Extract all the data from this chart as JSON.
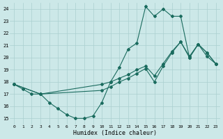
{
  "xlabel": "Humidex (Indice chaleur)",
  "background_color": "#cce8e8",
  "grid_color": "#aacfcf",
  "line_color": "#1a6b5e",
  "xlim": [
    -0.5,
    23.5
  ],
  "ylim": [
    14.5,
    24.5
  ],
  "xticks": [
    0,
    1,
    2,
    3,
    4,
    5,
    6,
    7,
    8,
    9,
    10,
    11,
    12,
    13,
    14,
    15,
    16,
    17,
    18,
    19,
    20,
    21,
    22,
    23
  ],
  "yticks": [
    15,
    16,
    17,
    18,
    19,
    20,
    21,
    22,
    23,
    24
  ],
  "curve1_x": [
    0,
    1,
    2,
    3,
    4,
    5,
    6,
    7,
    8,
    9,
    10,
    11,
    12,
    13,
    14,
    15,
    16,
    17,
    18,
    19,
    20,
    21,
    22,
    23
  ],
  "curve1_y": [
    17.8,
    17.4,
    17.0,
    17.0,
    16.3,
    15.8,
    15.3,
    15.0,
    15.0,
    15.2,
    16.3,
    18.0,
    19.2,
    20.7,
    21.2,
    24.2,
    23.4,
    24.0,
    23.4,
    23.4,
    20.0,
    21.1,
    20.1,
    19.5
  ],
  "curve2_x": [
    0,
    3,
    10,
    11,
    12,
    13,
    14,
    15,
    16,
    17,
    18,
    19,
    20,
    21,
    22,
    23
  ],
  "curve2_y": [
    17.8,
    17.0,
    17.3,
    17.6,
    18.0,
    18.3,
    18.7,
    19.1,
    18.0,
    19.3,
    20.4,
    21.3,
    20.1,
    21.1,
    20.4,
    19.5
  ],
  "curve3_x": [
    0,
    3,
    10,
    11,
    12,
    13,
    14,
    15,
    16,
    17,
    18,
    19,
    20,
    21,
    22,
    23
  ],
  "curve3_y": [
    17.8,
    17.0,
    17.8,
    18.0,
    18.3,
    18.6,
    19.0,
    19.3,
    18.5,
    19.5,
    20.5,
    21.3,
    20.0,
    21.1,
    20.4,
    19.5
  ]
}
